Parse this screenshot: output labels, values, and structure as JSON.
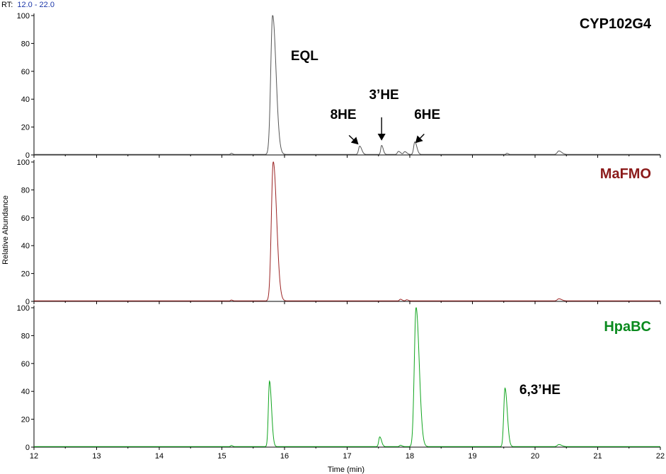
{
  "rt": {
    "prefix": "RT:",
    "range": "12.0 - 22.0"
  },
  "colors": {
    "axis": "#000000",
    "rt_range": "#1a35a8",
    "CYP102G4": "#000000",
    "MaFMO": "#8b1a1a",
    "HpaBC": "#0a8a1e",
    "trace_CYP102G4": "#555555",
    "trace_MaFMO": "#9b2323",
    "trace_HpaBC": "#11a51f"
  },
  "chart_data": {
    "type": "line",
    "xlabel": "Time (min)",
    "ylabel": "Relative Abundance",
    "xlim": [
      12,
      22
    ],
    "ylim": [
      0,
      100
    ],
    "x_ticks": [
      "12",
      "13",
      "14",
      "15",
      "16",
      "17",
      "18",
      "19",
      "20",
      "21",
      "22"
    ],
    "y_ticks": [
      "0",
      "20",
      "40",
      "60",
      "80",
      "100"
    ],
    "grid": false,
    "panels": [
      {
        "name": "CYP102G4",
        "peaks": [
          {
            "x": 15.15,
            "y": 0.8,
            "w": 0.012
          },
          {
            "x": 15.81,
            "y": 100,
            "w": 0.03
          },
          {
            "x": 17.2,
            "y": 6,
            "w": 0.018
          },
          {
            "x": 17.55,
            "y": 6.5,
            "w": 0.014
          },
          {
            "x": 17.82,
            "y": 2.2,
            "w": 0.018
          },
          {
            "x": 17.92,
            "y": 2.0,
            "w": 0.018
          },
          {
            "x": 18.08,
            "y": 9,
            "w": 0.018
          },
          {
            "x": 19.55,
            "y": 0.8,
            "w": 0.012
          },
          {
            "x": 20.38,
            "y": 2.5,
            "w": 0.025
          }
        ],
        "annotations": [
          {
            "text": "EQL",
            "x": 16.1,
            "y": 68
          },
          {
            "text": "8HE",
            "x": 16.73,
            "y": 26
          },
          {
            "text": "3’HE",
            "x": 17.35,
            "y": 40
          },
          {
            "text": "6HE",
            "x": 18.07,
            "y": 26
          }
        ]
      },
      {
        "name": "MaFMO",
        "peaks": [
          {
            "x": 15.15,
            "y": 0.6,
            "w": 0.012
          },
          {
            "x": 15.82,
            "y": 100,
            "w": 0.03
          },
          {
            "x": 17.85,
            "y": 1.2,
            "w": 0.015
          },
          {
            "x": 17.95,
            "y": 0.8,
            "w": 0.015
          },
          {
            "x": 20.38,
            "y": 1.5,
            "w": 0.025
          }
        ],
        "annotations": []
      },
      {
        "name": "HpaBC",
        "peaks": [
          {
            "x": 15.15,
            "y": 0.8,
            "w": 0.012
          },
          {
            "x": 15.76,
            "y": 47,
            "w": 0.018
          },
          {
            "x": 17.52,
            "y": 7,
            "w": 0.016
          },
          {
            "x": 17.85,
            "y": 1.0,
            "w": 0.015
          },
          {
            "x": 18.1,
            "y": 100,
            "w": 0.028
          },
          {
            "x": 19.52,
            "y": 42,
            "w": 0.02
          },
          {
            "x": 20.38,
            "y": 1.5,
            "w": 0.025
          }
        ],
        "annotations": [
          {
            "text": "6,3’HE",
            "x": 19.75,
            "y": 38
          }
        ]
      }
    ]
  }
}
